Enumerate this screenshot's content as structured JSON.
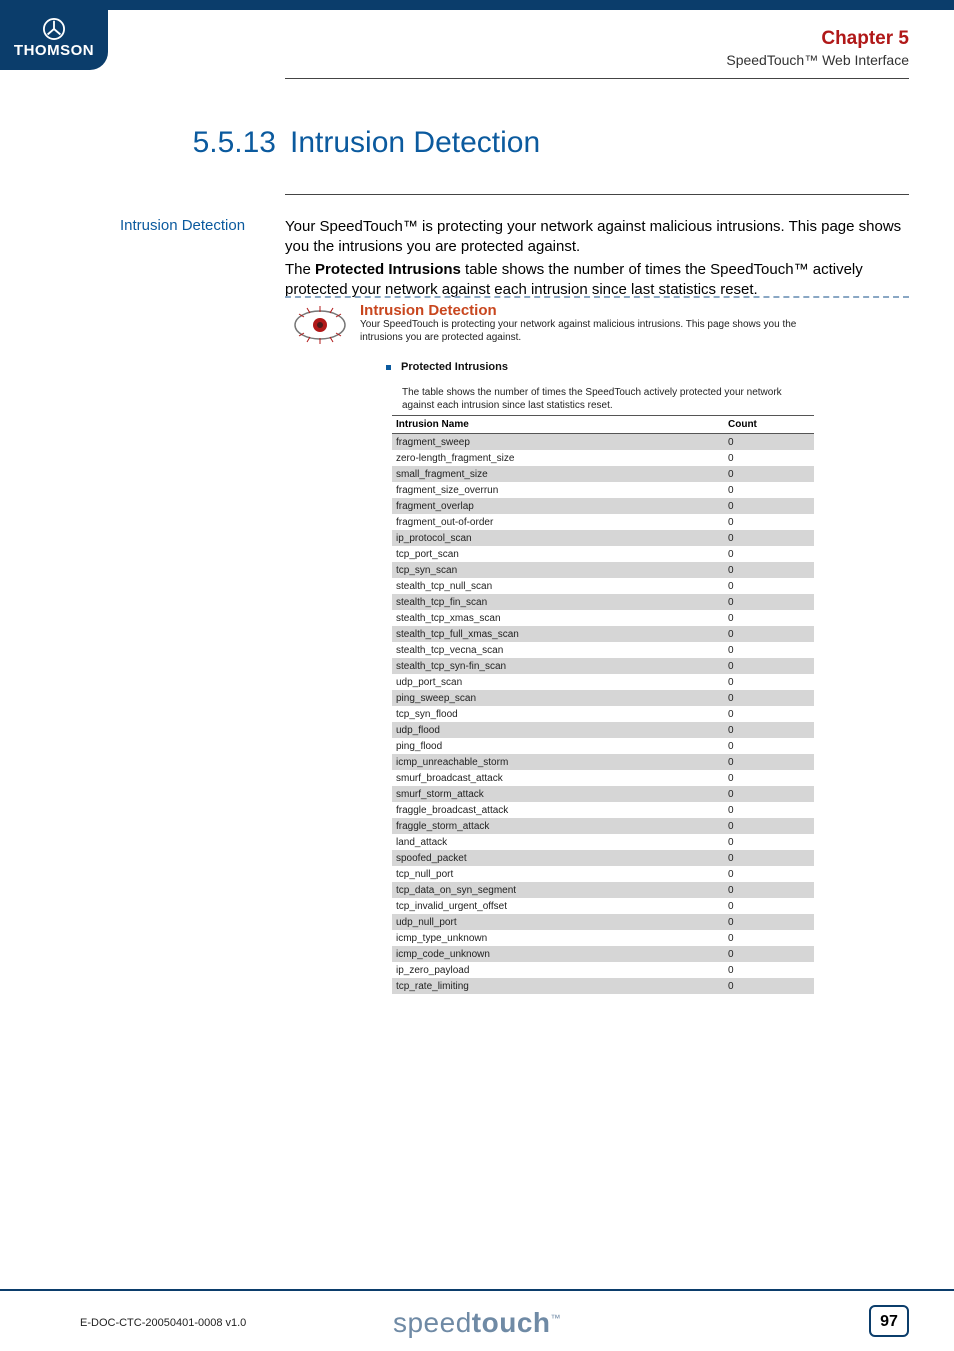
{
  "colors": {
    "header_bar": "#0b3d6b",
    "accent_red": "#b01818",
    "title_blue": "#0b5a9e",
    "inner_orange": "#c8461e",
    "dash_blue": "#89a7c4",
    "row_even_bg": "#d6d6d6",
    "row_odd_bg": "#ffffff",
    "footer_brand": "#6f8aa5"
  },
  "brand": "THOMSON",
  "chapter": {
    "title": "Chapter 5",
    "subtitle": "SpeedTouch™ Web Interface"
  },
  "section": {
    "number": "5.5.13",
    "title": "Intrusion Detection"
  },
  "side_label": "Intrusion Detection",
  "paragraph1": "Your SpeedTouch™ is protecting your network against malicious intrusions. This page shows you the intrusions you are protected against.",
  "paragraph2_pre": "The ",
  "paragraph2_bold": "Protected Intrusions",
  "paragraph2_post": " table shows the number of times the SpeedTouch™ actively protected your network against each intrusion since last statistics reset.",
  "inner": {
    "title": "Intrusion Detection",
    "desc": "Your SpeedTouch is protecting your network against malicious intrusions. This page shows you the intrusions you are protected against.",
    "bullet_label": "Protected Intrusions",
    "table_caption": "The table shows the number of times the SpeedTouch actively protected your network against each intrusion since last statistics reset."
  },
  "table": {
    "columns": [
      "Intrusion Name",
      "Count"
    ],
    "rows": [
      [
        "fragment_sweep",
        "0"
      ],
      [
        "zero-length_fragment_size",
        "0"
      ],
      [
        "small_fragment_size",
        "0"
      ],
      [
        "fragment_size_overrun",
        "0"
      ],
      [
        "fragment_overlap",
        "0"
      ],
      [
        "fragment_out-of-order",
        "0"
      ],
      [
        "ip_protocol_scan",
        "0"
      ],
      [
        "tcp_port_scan",
        "0"
      ],
      [
        "tcp_syn_scan",
        "0"
      ],
      [
        "stealth_tcp_null_scan",
        "0"
      ],
      [
        "stealth_tcp_fin_scan",
        "0"
      ],
      [
        "stealth_tcp_xmas_scan",
        "0"
      ],
      [
        "stealth_tcp_full_xmas_scan",
        "0"
      ],
      [
        "stealth_tcp_vecna_scan",
        "0"
      ],
      [
        "stealth_tcp_syn-fin_scan",
        "0"
      ],
      [
        "udp_port_scan",
        "0"
      ],
      [
        "ping_sweep_scan",
        "0"
      ],
      [
        "tcp_syn_flood",
        "0"
      ],
      [
        "udp_flood",
        "0"
      ],
      [
        "ping_flood",
        "0"
      ],
      [
        "icmp_unreachable_storm",
        "0"
      ],
      [
        "smurf_broadcast_attack",
        "0"
      ],
      [
        "smurf_storm_attack",
        "0"
      ],
      [
        "fraggle_broadcast_attack",
        "0"
      ],
      [
        "fraggle_storm_attack",
        "0"
      ],
      [
        "land_attack",
        "0"
      ],
      [
        "spoofed_packet",
        "0"
      ],
      [
        "tcp_null_port",
        "0"
      ],
      [
        "tcp_data_on_syn_segment",
        "0"
      ],
      [
        "tcp_invalid_urgent_offset",
        "0"
      ],
      [
        "udp_null_port",
        "0"
      ],
      [
        "icmp_type_unknown",
        "0"
      ],
      [
        "icmp_code_unknown",
        "0"
      ],
      [
        "ip_zero_payload",
        "0"
      ]
    ],
    "cutoff_row": [
      "tcp_rate_limiting",
      "0"
    ]
  },
  "footer": {
    "doc_id": "E-DOC-CTC-20050401-0008 v1.0",
    "brand_light": "speed",
    "brand_bold": "touch",
    "page": "97"
  }
}
